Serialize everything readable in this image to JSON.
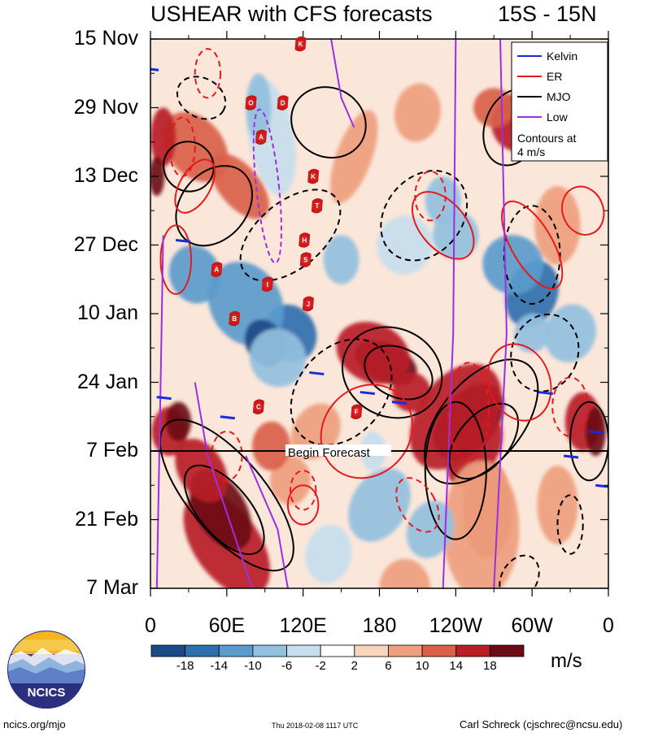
{
  "header": {
    "title": "USHEAR with CFS forecasts",
    "region": "15S - 15N"
  },
  "chart_data": {
    "type": "heatmap",
    "title": "USHEAR with CFS forecasts",
    "subtitle": "15S - 15N",
    "x_ticks": [
      "0",
      "60E",
      "120E",
      "180",
      "120W",
      "60W",
      "0"
    ],
    "x_tick_lon": [
      0,
      60,
      120,
      180,
      240,
      300,
      360
    ],
    "y_ticks": [
      "15 Nov",
      "29 Nov",
      "13 Dec",
      "27 Dec",
      "10 Jan",
      "24 Jan",
      "7 Feb",
      "21 Feb",
      "7 Mar"
    ],
    "y_tick_day": [
      0,
      14,
      28,
      42,
      56,
      70,
      84,
      98,
      112
    ],
    "forecast_start_day": 84,
    "forecast_label": "Begin Forecast",
    "colorbar": {
      "tick_labels": [
        "-18",
        "-14",
        "-10",
        "-6",
        "-2",
        "2",
        "6",
        "10",
        "14",
        "18"
      ],
      "colors": [
        "#1b4a84",
        "#2f6fae",
        "#5b9bcc",
        "#93c0de",
        "#c6deed",
        "#ffffff",
        "#f8d3bd",
        "#eea07e",
        "#d9614a",
        "#b81f26",
        "#6e0a15"
      ],
      "units": "m/s"
    },
    "legend": {
      "entries": [
        {
          "label": "Kelvin",
          "color": "#1a2bd8"
        },
        {
          "label": "ER",
          "color": "#e41a1c"
        },
        {
          "label": "MJO",
          "color": "#000000"
        },
        {
          "label": "Low",
          "color": "#9b30e0"
        }
      ],
      "note_line1": "Contours at",
      "note_line2": "4 m/s",
      "position": "top-right"
    },
    "cyclone_tracks": [
      {
        "id": "K",
        "lon": 118,
        "day": 1
      },
      {
        "id": "O",
        "lon": 79,
        "day": 13
      },
      {
        "id": "D",
        "lon": 104,
        "day": 13
      },
      {
        "id": "A",
        "lon": 87,
        "day": 20
      },
      {
        "id": "K",
        "lon": 128,
        "day": 28
      },
      {
        "id": "T",
        "lon": 131,
        "day": 34
      },
      {
        "id": "H",
        "lon": 121,
        "day": 41
      },
      {
        "id": "S",
        "lon": 122,
        "day": 45
      },
      {
        "id": "A",
        "lon": 52,
        "day": 47
      },
      {
        "id": "I",
        "lon": 92,
        "day": 50
      },
      {
        "id": "J",
        "lon": 124,
        "day": 54
      },
      {
        "id": "B",
        "lon": 66,
        "day": 57
      },
      {
        "id": "C",
        "lon": 85,
        "day": 75
      },
      {
        "id": "F",
        "lon": 162,
        "day": 76
      }
    ]
  },
  "footer": {
    "logo_text": "NCICS",
    "site": "ncics.org/mjo",
    "timestamp": "Thu 2018-02-08 1117 UTC",
    "author": "Carl Schreck (cjschrec@ncsu.edu)"
  }
}
